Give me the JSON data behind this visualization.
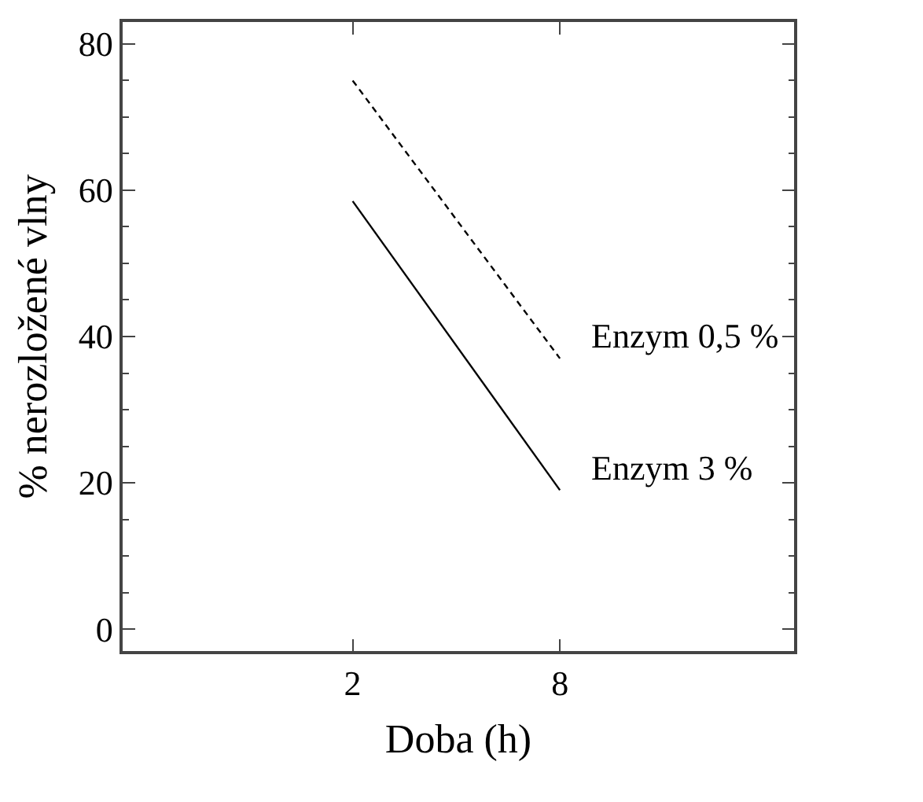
{
  "chart_data": {
    "type": "line",
    "xlabel": "Doba (h)",
    "ylabel": "% nerozložené vlny",
    "categories": [
      "2",
      "8"
    ],
    "series": [
      {
        "name": "Enzym 0,5 %",
        "color": "#000000",
        "values": [
          75,
          37
        ],
        "line_style": "dashed"
      },
      {
        "name": "Enzym 3 %",
        "color": "#000000",
        "values": [
          58.5,
          19
        ],
        "line_style": "solid"
      }
    ],
    "ylim": [
      -3,
      83
    ],
    "yticks": [
      0,
      20,
      40,
      60,
      80
    ],
    "legend": false,
    "marker": "none"
  }
}
